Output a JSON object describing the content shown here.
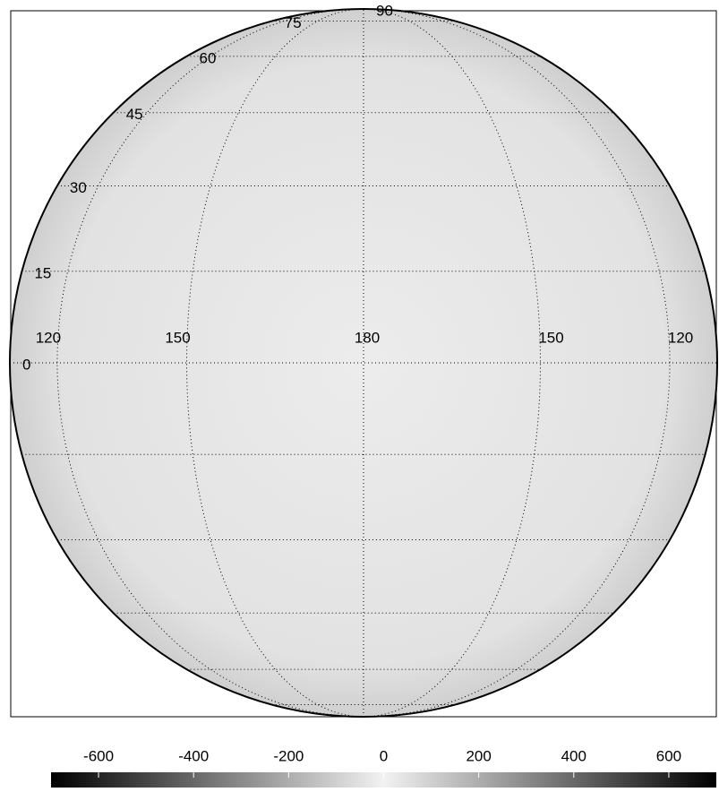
{
  "chart_data": {
    "type": "map",
    "projection": "orthographic",
    "center_lon": 180,
    "lat_lines": [
      -75,
      -60,
      -45,
      -30,
      -15,
      0,
      15,
      30,
      45,
      60,
      75
    ],
    "lat_labels": [
      0,
      15,
      30,
      45,
      60,
      75,
      90
    ],
    "lon_lines": [
      120,
      150,
      180,
      210,
      240
    ],
    "lon_labels": [
      "120",
      "150",
      "180",
      "150",
      "120"
    ],
    "colorbar": {
      "clim": [
        -700,
        700
      ],
      "ticks": [
        -600,
        -400,
        -200,
        0,
        200,
        400,
        600
      ],
      "colors": [
        "#000000",
        "#f2f2f2",
        "#000000"
      ]
    }
  }
}
